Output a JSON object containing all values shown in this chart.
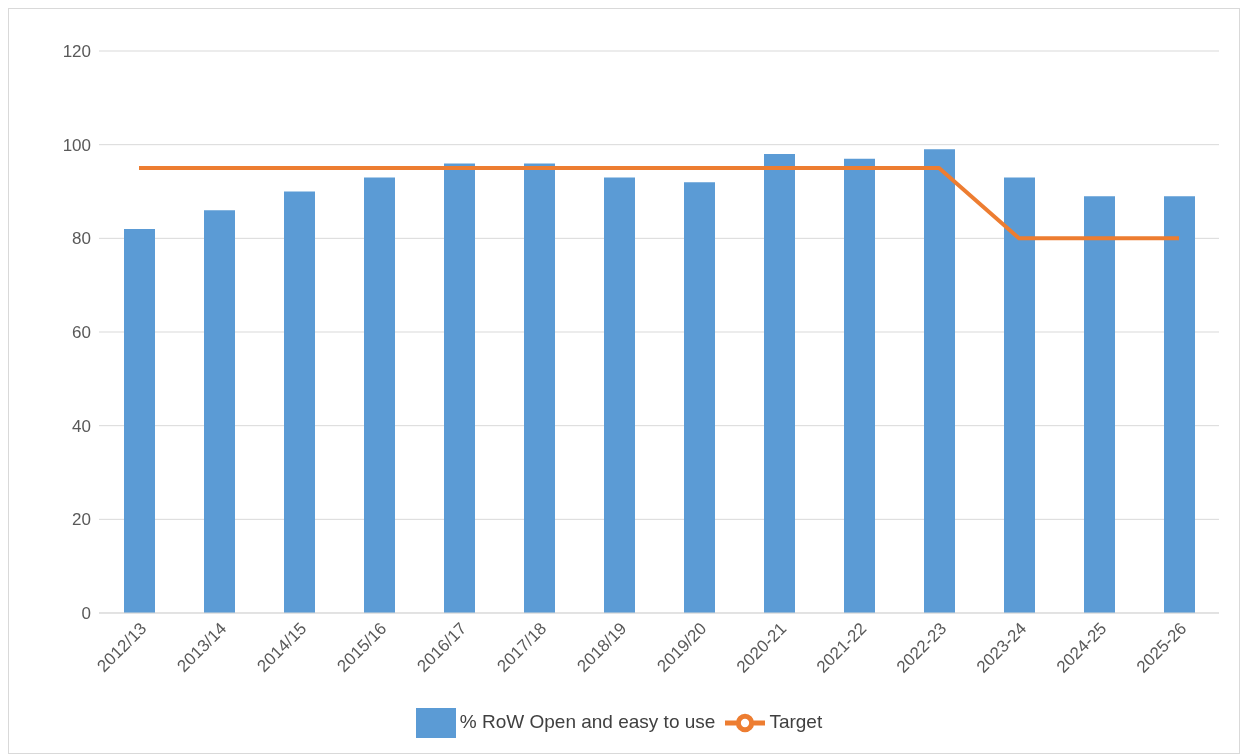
{
  "chart_data": {
    "type": "bar",
    "categories": [
      "2012/13",
      "2013/14",
      "2014/15",
      "2015/16",
      "2016/17",
      "2017/18",
      "2018/19",
      "2019/20",
      "2020-21",
      "2021-22",
      "2022-23",
      "2023-24",
      "2024-25",
      "2025-26"
    ],
    "series": [
      {
        "name": "% RoW Open and easy to use",
        "color": "#5b9bd5",
        "values": [
          82,
          86,
          90,
          93,
          96,
          96,
          93,
          92,
          98,
          97,
          99,
          93,
          89,
          89
        ]
      },
      {
        "name": "Target",
        "type": "line",
        "color": "#ed7d31",
        "marker": "none",
        "values": [
          95,
          95,
          95,
          95,
          95,
          95,
          95,
          95,
          95,
          95,
          95,
          80,
          80,
          80
        ]
      }
    ],
    "ylim": [
      0,
      120
    ],
    "yticks": [
      0,
      20,
      40,
      60,
      80,
      100,
      120
    ],
    "grid": "y",
    "legend": "bottom"
  }
}
